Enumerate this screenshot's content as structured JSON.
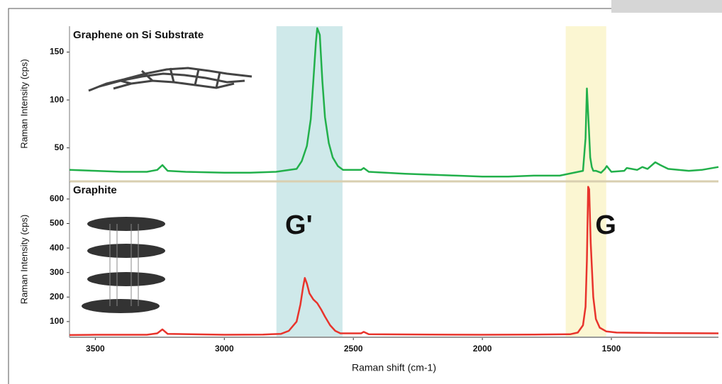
{
  "chart_data": [
    {
      "type": "line",
      "title": "Graphene on Si Substrate",
      "ylabel": "Raman Intensity (cps)",
      "color": "#22b04b",
      "xlim": [
        3600,
        1085
      ],
      "ylim": [
        15,
        177
      ],
      "yticks": [
        50,
        100,
        150
      ],
      "x": [
        3600,
        3500,
        3400,
        3300,
        3260,
        3240,
        3220,
        3150,
        3000,
        2900,
        2800,
        2720,
        2700,
        2680,
        2665,
        2655,
        2645,
        2640,
        2630,
        2620,
        2610,
        2595,
        2580,
        2560,
        2540,
        2470,
        2460,
        2440,
        2300,
        2100,
        2000,
        1900,
        1800,
        1700,
        1610,
        1600,
        1595,
        1588,
        1582,
        1576,
        1570,
        1560,
        1540,
        1525,
        1518,
        1500,
        1450,
        1440,
        1400,
        1380,
        1360,
        1330,
        1310,
        1280,
        1200,
        1150,
        1085
      ],
      "values": [
        27,
        26,
        25,
        25,
        27,
        32,
        26,
        25,
        24,
        24,
        25,
        28,
        36,
        52,
        80,
        120,
        160,
        175,
        168,
        120,
        82,
        55,
        40,
        31,
        27,
        27,
        29,
        25,
        23,
        21,
        20,
        20,
        21,
        21,
        26,
        60,
        112,
        75,
        40,
        30,
        26,
        26,
        24,
        28,
        31,
        25,
        26,
        29,
        27,
        30,
        28,
        35,
        32,
        28,
        26,
        27,
        30
      ]
    },
    {
      "type": "line",
      "title": "Graphite",
      "ylabel": "Raman Intensity (cps)",
      "xlabel": "Raman shift (cm-1)",
      "color": "#e8342c",
      "xlim": [
        3600,
        1085
      ],
      "ylim": [
        36,
        672
      ],
      "yticks": [
        100,
        200,
        300,
        400,
        500,
        600
      ],
      "xticks": [
        3500,
        3000,
        2500,
        2000,
        1500
      ],
      "x": [
        3600,
        3500,
        3300,
        3260,
        3240,
        3220,
        3000,
        2850,
        2780,
        2750,
        2720,
        2705,
        2695,
        2688,
        2680,
        2670,
        2655,
        2640,
        2625,
        2610,
        2590,
        2570,
        2550,
        2470,
        2460,
        2440,
        2200,
        2000,
        1800,
        1660,
        1630,
        1610,
        1600,
        1595,
        1590,
        1586,
        1580,
        1570,
        1560,
        1545,
        1520,
        1480,
        1300,
        1085
      ],
      "values": [
        45,
        46,
        46,
        52,
        68,
        50,
        46,
        47,
        50,
        62,
        100,
        170,
        240,
        278,
        255,
        215,
        190,
        175,
        150,
        120,
        85,
        62,
        52,
        52,
        58,
        48,
        47,
        46,
        47,
        48,
        55,
        85,
        160,
        350,
        650,
        640,
        420,
        200,
        110,
        75,
        60,
        55,
        53,
        52
      ],
      "bands": [
        {
          "range": [
            2798,
            2542
          ],
          "label": "G'",
          "color": "#cfe9ea"
        },
        {
          "range": [
            1677,
            1520
          ],
          "label": "G",
          "color": "#fbf6d2"
        }
      ]
    }
  ]
}
